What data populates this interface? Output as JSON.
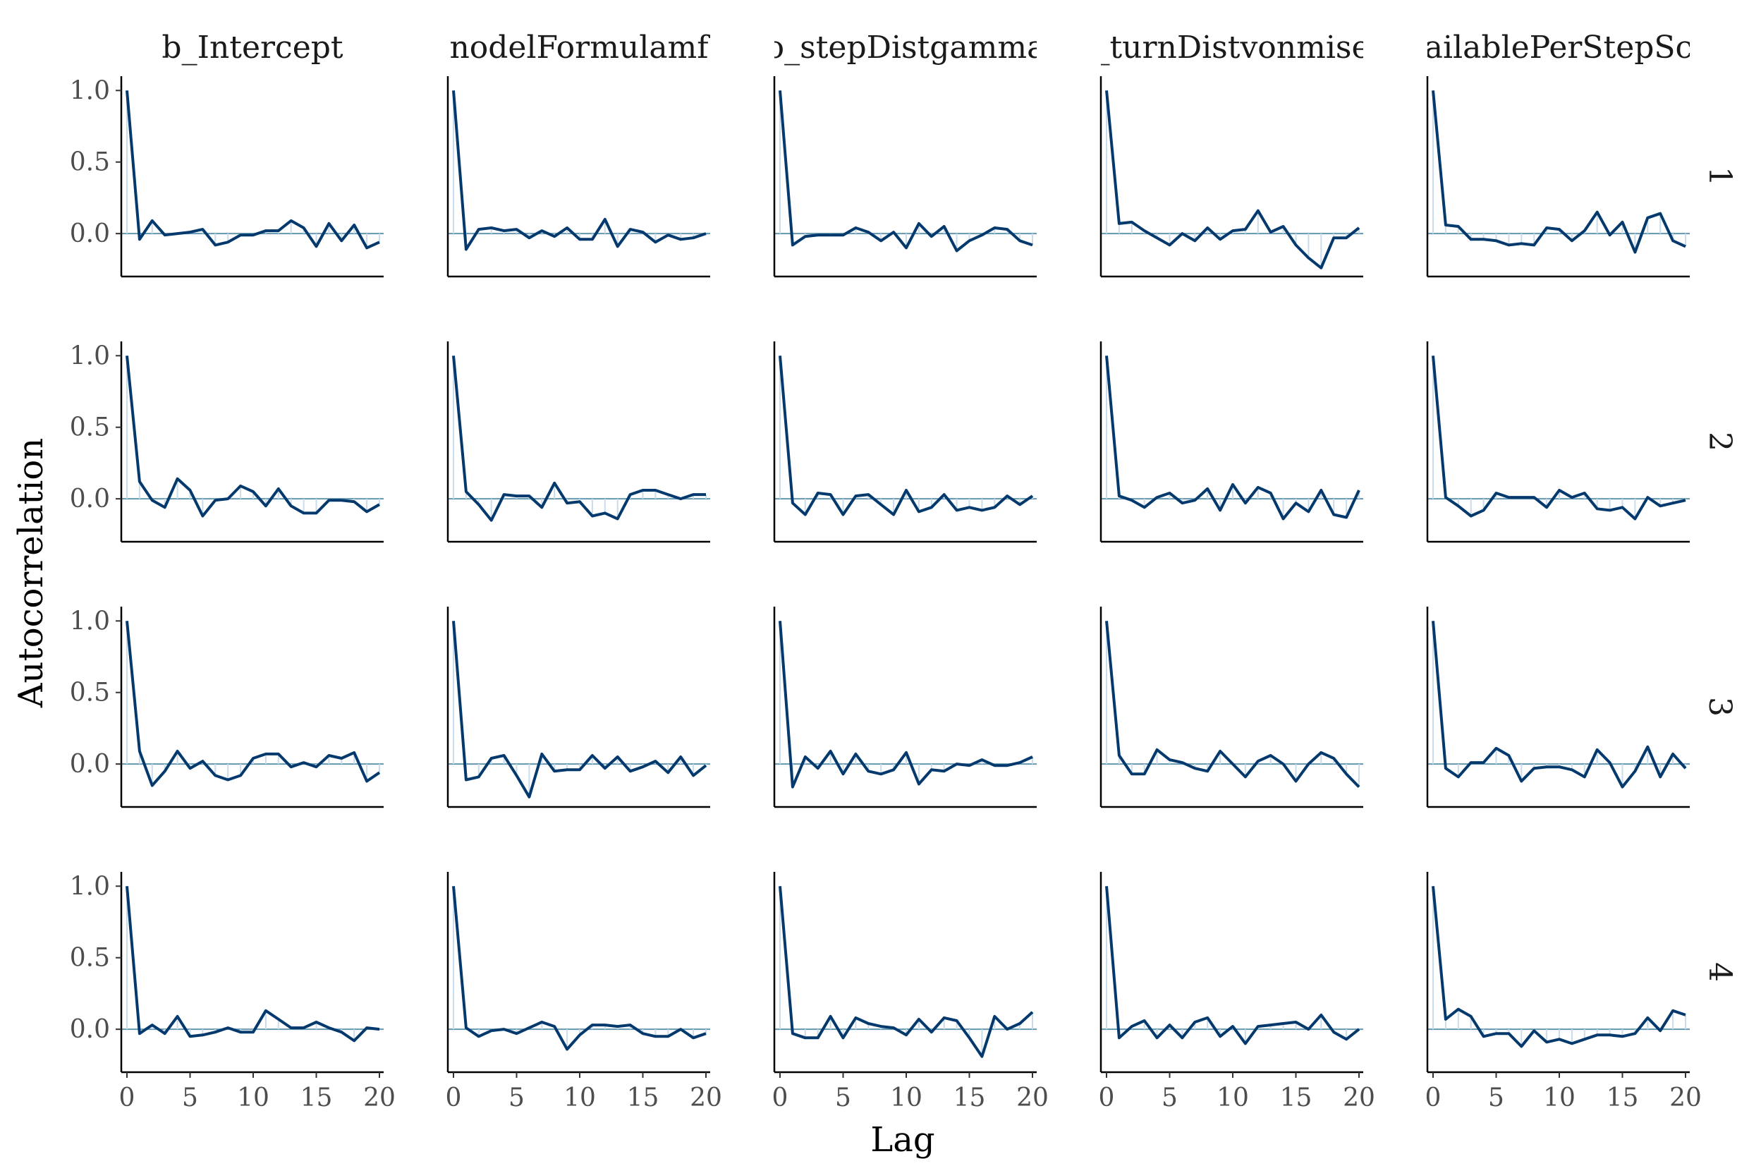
{
  "chart_data": {
    "type": "line",
    "xlabel": "Lag",
    "ylabel": "Autocorrelation",
    "xlim": [
      0,
      20
    ],
    "ylim": [
      -0.3,
      1.1
    ],
    "xticks": [
      "0",
      "5",
      "10",
      "15",
      "20"
    ],
    "yticks": [
      "0.0",
      "0.5",
      "1.0"
    ],
    "grid": false,
    "line_color": "#03396c",
    "zero_line_color": "#6497b1",
    "columns": [
      "b_Intercept",
      "nodelFormulamf",
      "o_stepDistgamma",
      "_turnDistvonmise",
      "ailablePerStepSc"
    ],
    "rows": [
      "1",
      "2",
      "3",
      "4"
    ],
    "lags": [
      0,
      1,
      2,
      3,
      4,
      5,
      6,
      7,
      8,
      9,
      10,
      11,
      12,
      13,
      14,
      15,
      16,
      17,
      18,
      19,
      20
    ],
    "panels": [
      [
        [
          1.0,
          -0.04,
          0.09,
          -0.01,
          0.0,
          0.01,
          0.03,
          -0.08,
          -0.06,
          -0.01,
          -0.01,
          0.02,
          0.02,
          0.09,
          0.04,
          -0.09,
          0.07,
          -0.05,
          0.06,
          -0.1,
          -0.06
        ],
        [
          1.0,
          -0.11,
          0.03,
          0.04,
          0.02,
          0.03,
          -0.03,
          0.02,
          -0.02,
          0.04,
          -0.04,
          -0.04,
          0.1,
          -0.09,
          0.03,
          0.01,
          -0.06,
          -0.01,
          -0.04,
          -0.03,
          0.0
        ],
        [
          1.0,
          -0.08,
          -0.02,
          -0.01,
          -0.01,
          -0.01,
          0.04,
          0.01,
          -0.05,
          0.01,
          -0.1,
          0.07,
          -0.02,
          0.05,
          -0.12,
          -0.05,
          -0.01,
          0.04,
          0.03,
          -0.05,
          -0.08
        ],
        [
          1.0,
          0.07,
          0.08,
          0.02,
          -0.03,
          -0.08,
          0.0,
          -0.05,
          0.04,
          -0.04,
          0.02,
          0.03,
          0.16,
          0.01,
          0.05,
          -0.08,
          -0.17,
          -0.24,
          -0.03,
          -0.03,
          0.04
        ],
        [
          1.0,
          0.06,
          0.05,
          -0.04,
          -0.04,
          -0.05,
          -0.08,
          -0.07,
          -0.08,
          0.04,
          0.03,
          -0.05,
          0.02,
          0.15,
          -0.01,
          0.08,
          -0.13,
          0.11,
          0.14,
          -0.05,
          -0.09
        ]
      ],
      [
        [
          1.0,
          0.12,
          -0.01,
          -0.06,
          0.14,
          0.06,
          -0.12,
          -0.01,
          0.0,
          0.09,
          0.05,
          -0.05,
          0.07,
          -0.05,
          -0.1,
          -0.1,
          -0.01,
          -0.01,
          -0.02,
          -0.09,
          -0.04
        ],
        [
          1.0,
          0.05,
          -0.04,
          -0.15,
          0.03,
          0.02,
          0.02,
          -0.06,
          0.11,
          -0.03,
          -0.02,
          -0.12,
          -0.1,
          -0.14,
          0.03,
          0.06,
          0.06,
          0.03,
          0.0,
          0.03,
          0.03
        ],
        [
          1.0,
          -0.03,
          -0.11,
          0.04,
          0.03,
          -0.11,
          0.02,
          0.03,
          -0.04,
          -0.11,
          0.06,
          -0.09,
          -0.06,
          0.03,
          -0.08,
          -0.06,
          -0.08,
          -0.06,
          0.02,
          -0.04,
          0.02
        ],
        [
          1.0,
          0.02,
          -0.01,
          -0.06,
          0.01,
          0.04,
          -0.03,
          -0.01,
          0.07,
          -0.08,
          0.1,
          -0.03,
          0.08,
          0.04,
          -0.14,
          -0.03,
          -0.09,
          0.06,
          -0.11,
          -0.13,
          0.06
        ],
        [
          1.0,
          0.01,
          -0.05,
          -0.12,
          -0.08,
          0.04,
          0.01,
          0.01,
          0.01,
          -0.06,
          0.06,
          0.01,
          0.04,
          -0.07,
          -0.08,
          -0.06,
          -0.14,
          0.01,
          -0.05,
          -0.03,
          -0.01
        ]
      ],
      [
        [
          1.0,
          0.09,
          -0.15,
          -0.05,
          0.09,
          -0.03,
          0.02,
          -0.08,
          -0.11,
          -0.08,
          0.04,
          0.07,
          0.07,
          -0.02,
          0.01,
          -0.02,
          0.06,
          0.04,
          0.08,
          -0.12,
          -0.06
        ],
        [
          1.0,
          -0.11,
          -0.09,
          0.04,
          0.06,
          -0.08,
          -0.23,
          0.07,
          -0.05,
          -0.04,
          -0.04,
          0.06,
          -0.03,
          0.05,
          -0.05,
          -0.02,
          0.02,
          -0.06,
          0.05,
          -0.08,
          -0.01
        ],
        [
          1.0,
          -0.16,
          0.05,
          -0.03,
          0.09,
          -0.07,
          0.07,
          -0.05,
          -0.07,
          -0.04,
          0.08,
          -0.14,
          -0.04,
          -0.05,
          0.0,
          -0.01,
          0.03,
          -0.01,
          -0.01,
          0.01,
          0.05
        ],
        [
          1.0,
          0.06,
          -0.07,
          -0.07,
          0.1,
          0.03,
          0.01,
          -0.03,
          -0.05,
          0.09,
          0.0,
          -0.09,
          0.02,
          0.06,
          0.0,
          -0.12,
          0.0,
          0.08,
          0.04,
          -0.07,
          -0.16
        ],
        [
          1.0,
          -0.03,
          -0.09,
          0.01,
          0.01,
          0.11,
          0.06,
          -0.12,
          -0.03,
          -0.02,
          -0.02,
          -0.04,
          -0.09,
          0.1,
          0.01,
          -0.16,
          -0.05,
          0.12,
          -0.09,
          0.07,
          -0.03
        ]
      ],
      [
        [
          1.0,
          -0.03,
          0.03,
          -0.03,
          0.09,
          -0.05,
          -0.04,
          -0.02,
          0.01,
          -0.02,
          -0.02,
          0.13,
          0.07,
          0.01,
          0.01,
          0.05,
          0.01,
          -0.02,
          -0.08,
          0.01,
          0.0
        ],
        [
          1.0,
          0.01,
          -0.05,
          -0.01,
          0.0,
          -0.03,
          0.01,
          0.05,
          0.02,
          -0.14,
          -0.04,
          0.03,
          0.03,
          0.02,
          0.03,
          -0.03,
          -0.05,
          -0.05,
          0.0,
          -0.06,
          -0.03
        ],
        [
          1.0,
          -0.03,
          -0.06,
          -0.06,
          0.09,
          -0.06,
          0.08,
          0.04,
          0.02,
          0.01,
          -0.04,
          0.07,
          -0.02,
          0.08,
          0.06,
          -0.06,
          -0.19,
          0.09,
          0.0,
          0.04,
          0.12
        ],
        [
          1.0,
          -0.06,
          0.02,
          0.06,
          -0.06,
          0.03,
          -0.06,
          0.05,
          0.08,
          -0.05,
          0.02,
          -0.1,
          0.02,
          0.03,
          0.04,
          0.05,
          0.0,
          0.1,
          -0.02,
          -0.07,
          0.0
        ],
        [
          1.0,
          0.07,
          0.14,
          0.09,
          -0.05,
          -0.03,
          -0.03,
          -0.12,
          -0.01,
          -0.09,
          -0.07,
          -0.1,
          -0.07,
          -0.04,
          -0.04,
          -0.05,
          -0.03,
          0.08,
          -0.01,
          0.13,
          0.1
        ]
      ]
    ]
  }
}
